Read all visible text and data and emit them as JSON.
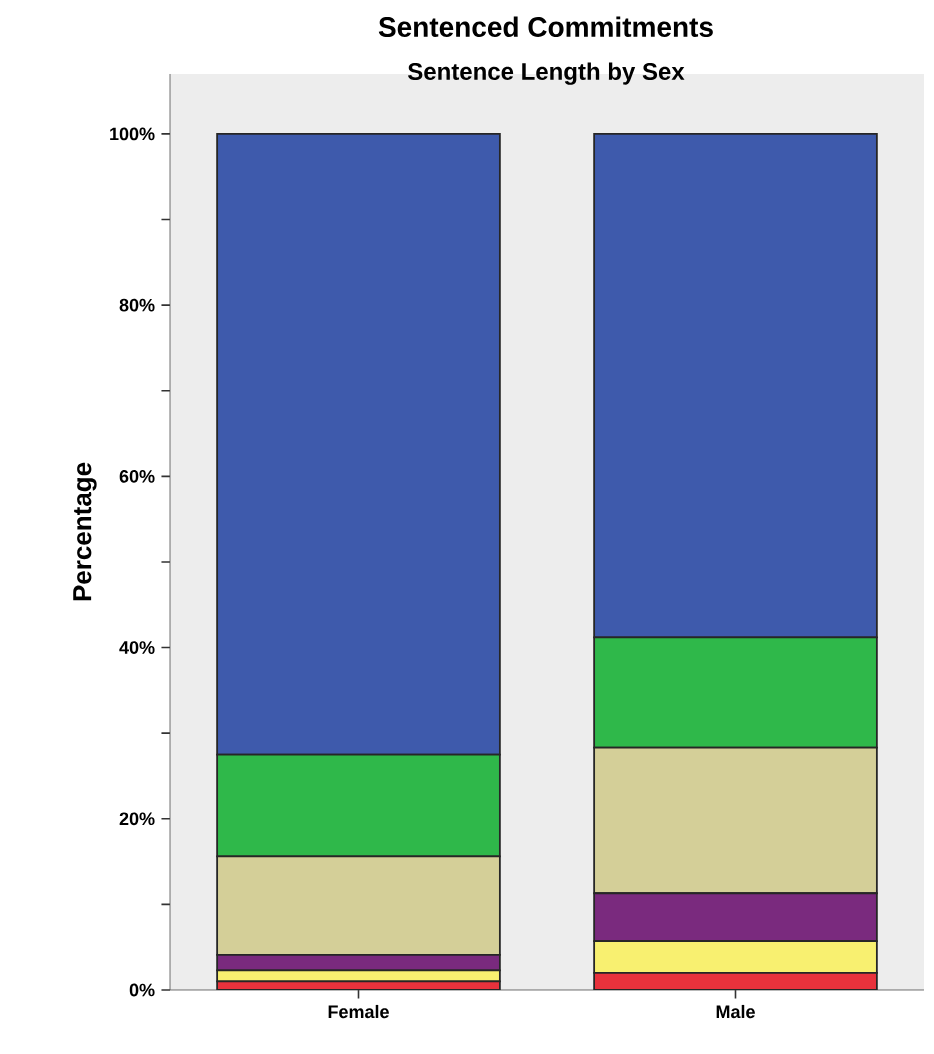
{
  "chart_data": {
    "type": "bar",
    "stacked": true,
    "title": "Sentenced Commitments",
    "subtitle": "Sentence Length by Sex",
    "ylabel": "Percentage",
    "categories": [
      "Female",
      "Male"
    ],
    "series": [
      {
        "color": "#e8323c",
        "values": [
          1.0,
          2.0
        ]
      },
      {
        "color": "#f8f070",
        "values": [
          1.3,
          3.7
        ]
      },
      {
        "color": "#7a2a7e",
        "values": [
          1.8,
          5.6
        ]
      },
      {
        "color": "#d4cf98",
        "values": [
          11.5,
          17.0
        ]
      },
      {
        "color": "#2fb84a",
        "values": [
          11.9,
          12.9
        ]
      },
      {
        "color": "#3e5aac",
        "values": [
          72.5,
          58.8
        ]
      }
    ],
    "ylim": [
      0,
      107
    ],
    "yticks": [
      {
        "value": 0,
        "label": "0%"
      },
      {
        "value": 10,
        "label": null
      },
      {
        "value": 20,
        "label": "20%"
      },
      {
        "value": 30,
        "label": null
      },
      {
        "value": 40,
        "label": "40%"
      },
      {
        "value": 50,
        "label": null
      },
      {
        "value": 60,
        "label": "60%"
      },
      {
        "value": 70,
        "label": null
      },
      {
        "value": 80,
        "label": "80%"
      },
      {
        "value": 90,
        "label": null
      },
      {
        "value": 100,
        "label": "100%"
      }
    ]
  }
}
